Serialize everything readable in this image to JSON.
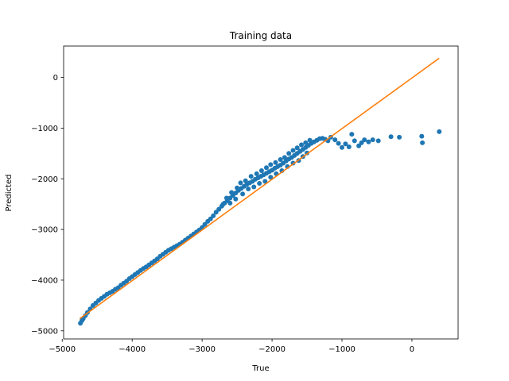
{
  "chart_data": {
    "type": "scatter",
    "title": "Training data",
    "xlabel": "True",
    "ylabel": "Predicted",
    "xlim": [
      -4980,
      660
    ],
    "ylim": [
      -5160,
      620
    ],
    "xticks": [
      -5000,
      -4000,
      -3000,
      -2000,
      -1000,
      0
    ],
    "yticks": [
      0,
      -1000,
      -2000,
      -3000,
      -4000,
      -5000
    ],
    "xtick_labels": [
      "−5000",
      "−4000",
      "−3000",
      "−2000",
      "−1000",
      "0"
    ],
    "ytick_labels": [
      "0",
      "−1000",
      "−2000",
      "−3000",
      "−4000",
      "−5000"
    ],
    "grid": false,
    "legend": null,
    "colors": {
      "points": "#1f77b4",
      "line": "#ff7f0e"
    },
    "series": [
      {
        "type": "scatter",
        "points": [
          [
            -4740,
            -4850
          ],
          [
            -4720,
            -4800
          ],
          [
            -4700,
            -4760
          ],
          [
            -4670,
            -4700
          ],
          [
            -4640,
            -4640
          ],
          [
            -4600,
            -4570
          ],
          [
            -4560,
            -4500
          ],
          [
            -4520,
            -4450
          ],
          [
            -4480,
            -4400
          ],
          [
            -4440,
            -4360
          ],
          [
            -4400,
            -4320
          ],
          [
            -4360,
            -4280
          ],
          [
            -4320,
            -4250
          ],
          [
            -4280,
            -4220
          ],
          [
            -4240,
            -4180
          ],
          [
            -4200,
            -4150
          ],
          [
            -4160,
            -4100
          ],
          [
            -4120,
            -4060
          ],
          [
            -4080,
            -4020
          ],
          [
            -4040,
            -3970
          ],
          [
            -4000,
            -3930
          ],
          [
            -3960,
            -3890
          ],
          [
            -3920,
            -3850
          ],
          [
            -3880,
            -3810
          ],
          [
            -3840,
            -3770
          ],
          [
            -3800,
            -3740
          ],
          [
            -3760,
            -3700
          ],
          [
            -3720,
            -3660
          ],
          [
            -3680,
            -3620
          ],
          [
            -3640,
            -3580
          ],
          [
            -3600,
            -3530
          ],
          [
            -3560,
            -3490
          ],
          [
            -3520,
            -3450
          ],
          [
            -3480,
            -3410
          ],
          [
            -3440,
            -3380
          ],
          [
            -3400,
            -3350
          ],
          [
            -3360,
            -3320
          ],
          [
            -3320,
            -3290
          ],
          [
            -3280,
            -3250
          ],
          [
            -3240,
            -3210
          ],
          [
            -3200,
            -3170
          ],
          [
            -3160,
            -3130
          ],
          [
            -3120,
            -3090
          ],
          [
            -3080,
            -3050
          ],
          [
            -3040,
            -3010
          ],
          [
            -3000,
            -2960
          ],
          [
            -2960,
            -2900
          ],
          [
            -2920,
            -2840
          ],
          [
            -2880,
            -2790
          ],
          [
            -2840,
            -2730
          ],
          [
            -2800,
            -2660
          ],
          [
            -2760,
            -2600
          ],
          [
            -2720,
            -2540
          ],
          [
            -2680,
            -2480
          ],
          [
            -2640,
            -2430
          ],
          [
            -2600,
            -2380
          ],
          [
            -2560,
            -2330
          ],
          [
            -2520,
            -2280
          ],
          [
            -2480,
            -2230
          ],
          [
            -2440,
            -2190
          ],
          [
            -2400,
            -2150
          ],
          [
            -2360,
            -2110
          ],
          [
            -2320,
            -2080
          ],
          [
            -2280,
            -2050
          ],
          [
            -2240,
            -2010
          ],
          [
            -2200,
            -1980
          ],
          [
            -2160,
            -1950
          ],
          [
            -2120,
            -1920
          ],
          [
            -2080,
            -1890
          ],
          [
            -2040,
            -1860
          ],
          [
            -2000,
            -1830
          ],
          [
            -1960,
            -1790
          ],
          [
            -1920,
            -1760
          ],
          [
            -1880,
            -1730
          ],
          [
            -1840,
            -1690
          ],
          [
            -1800,
            -1650
          ],
          [
            -1760,
            -1610
          ],
          [
            -1720,
            -1580
          ],
          [
            -1680,
            -1540
          ],
          [
            -1640,
            -1500
          ],
          [
            -1600,
            -1460
          ],
          [
            -1560,
            -1420
          ],
          [
            -1520,
            -1380
          ],
          [
            -1480,
            -1340
          ],
          [
            -1440,
            -1300
          ],
          [
            -1400,
            -1270
          ],
          [
            -1360,
            -1240
          ],
          [
            -1320,
            -1210
          ],
          [
            -1280,
            -1200
          ],
          [
            -1240,
            -1220
          ],
          [
            -1200,
            -1250
          ],
          [
            -1160,
            -1180
          ],
          [
            -1100,
            -1230
          ],
          [
            -1050,
            -1300
          ],
          [
            -1000,
            -1380
          ],
          [
            -950,
            -1310
          ],
          [
            -900,
            -1370
          ],
          [
            -860,
            -1120
          ],
          [
            -820,
            -1250
          ],
          [
            -760,
            -1350
          ],
          [
            -720,
            -1290
          ],
          [
            -680,
            -1230
          ],
          [
            -620,
            -1270
          ],
          [
            -560,
            -1230
          ],
          [
            -480,
            -1250
          ],
          [
            -300,
            -1170
          ],
          [
            -180,
            -1180
          ],
          [
            140,
            -1160
          ],
          [
            150,
            -1290
          ],
          [
            390,
            -1070
          ],
          [
            -2700,
            -2500
          ],
          [
            -2650,
            -2380
          ],
          [
            -2580,
            -2270
          ],
          [
            -2500,
            -2180
          ],
          [
            -2450,
            -2080
          ],
          [
            -2380,
            -2040
          ],
          [
            -2300,
            -1950
          ],
          [
            -2220,
            -1900
          ],
          [
            -2150,
            -1840
          ],
          [
            -2080,
            -1780
          ],
          [
            -2020,
            -1720
          ],
          [
            -1950,
            -1680
          ],
          [
            -1880,
            -1620
          ],
          [
            -1820,
            -1580
          ],
          [
            -1760,
            -1500
          ],
          [
            -1700,
            -1440
          ],
          [
            -1640,
            -1390
          ],
          [
            -1580,
            -1330
          ],
          [
            -1520,
            -1290
          ],
          [
            -1460,
            -1240
          ],
          [
            -2600,
            -2480
          ],
          [
            -2520,
            -2400
          ],
          [
            -2420,
            -2300
          ],
          [
            -2340,
            -2200
          ],
          [
            -2260,
            -2160
          ],
          [
            -2180,
            -2090
          ],
          [
            -2100,
            -2050
          ],
          [
            -2020,
            -1970
          ],
          [
            -1940,
            -1900
          ],
          [
            -1860,
            -1840
          ],
          [
            -1780,
            -1760
          ],
          [
            -1700,
            -1690
          ],
          [
            -1620,
            -1640
          ],
          [
            -1560,
            -1560
          ],
          [
            -1500,
            -1490
          ]
        ]
      },
      {
        "type": "line",
        "points": [
          [
            -4750,
            -4760
          ],
          [
            390,
            380
          ]
        ]
      }
    ]
  }
}
